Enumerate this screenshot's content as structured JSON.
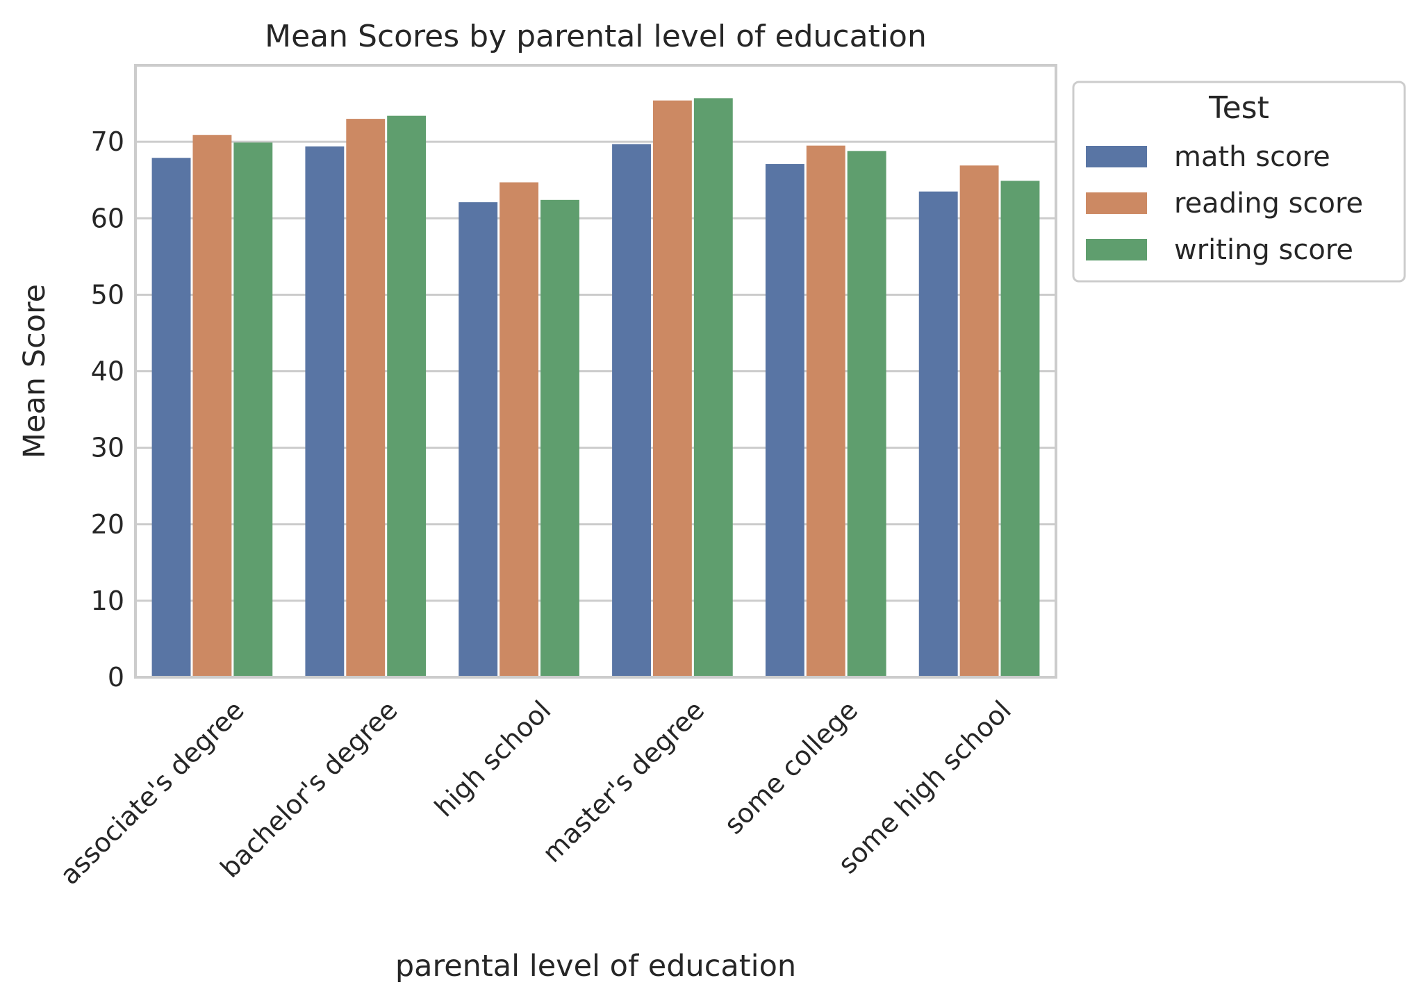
{
  "chart_data": {
    "type": "bar",
    "title": "Mean Scores by parental level of education",
    "xlabel": "parental level of education",
    "ylabel": "Mean Score",
    "categories": [
      "associate's degree",
      "bachelor's degree",
      "high school",
      "master's degree",
      "some college",
      "some high school"
    ],
    "series": [
      {
        "name": "math score",
        "color": "#5975a4",
        "values": [
          67.9,
          69.4,
          62.1,
          69.7,
          67.1,
          63.5
        ]
      },
      {
        "name": "reading score",
        "color": "#cc8963",
        "values": [
          70.9,
          73.0,
          64.7,
          75.4,
          69.5,
          66.9
        ]
      },
      {
        "name": "writing score",
        "color": "#5f9e6e",
        "values": [
          69.9,
          73.4,
          62.4,
          75.7,
          68.8,
          64.9
        ]
      }
    ],
    "ylim": [
      0,
      80
    ],
    "yticks": [
      0,
      10,
      20,
      30,
      40,
      50,
      60,
      70
    ],
    "x_tick_rotation": 45,
    "grid": true,
    "legend": {
      "title": "Test",
      "placement": "outside-top-right"
    }
  }
}
